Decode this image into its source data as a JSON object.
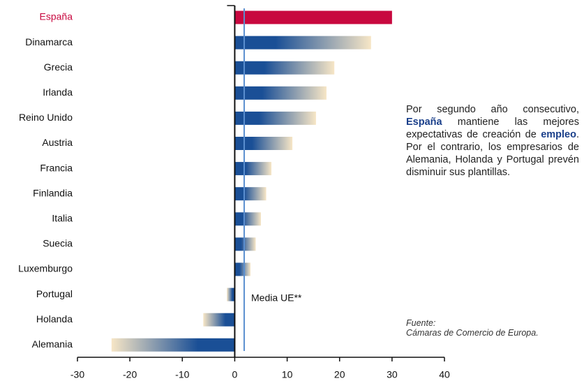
{
  "chart_data": {
    "type": "bar",
    "orientation": "horizontal",
    "categories": [
      "España",
      "Dinamarca",
      "Grecia",
      "Irlanda",
      "Reino Unido",
      "Austria",
      "Francia",
      "Finlandia",
      "Italia",
      "Suecia",
      "Luxemburgo",
      "Portugal",
      "Holanda",
      "Alemania"
    ],
    "values": [
      30,
      26,
      19,
      17.5,
      15.5,
      11,
      7,
      6,
      5,
      4,
      3,
      -1.5,
      -6,
      -23.5
    ],
    "colors": [
      "#c8083f",
      "#1a4f96",
      "#1a4f96",
      "#1a4f96",
      "#1a4f96",
      "#1a4f96",
      "#1a4f96",
      "#1a4f96",
      "#1a4f96",
      "#1a4f96",
      "#1a4f96",
      "#1a4f96",
      "#1a4f96",
      "#1a4f96"
    ],
    "gradient_end": "#f7e6c6",
    "label_colors": [
      "#c8083f",
      "#111111",
      "#111111",
      "#111111",
      "#111111",
      "#111111",
      "#111111",
      "#111111",
      "#111111",
      "#111111",
      "#111111",
      "#111111",
      "#111111",
      "#111111"
    ],
    "xlim": [
      -30,
      40
    ],
    "xticks": [
      -30,
      -20,
      -10,
      0,
      10,
      20,
      30,
      40
    ],
    "reference": {
      "value": 1.8,
      "label": "Media UE**",
      "color": "#5b8fd0"
    },
    "note": [
      {
        "text": "Por segundo año consecutivo, ",
        "bold": false
      },
      {
        "text": "España",
        "bold": true
      },
      {
        "text": " mantiene las mejores expectativas de creación de ",
        "bold": false
      },
      {
        "text": "empleo",
        "bold": true
      },
      {
        "text": ". Por el contrario, los empresarios de Alemania, Holanda y Portugal prevén dis­minuir sus plantillas.",
        "bold": false
      }
    ],
    "source": [
      "Fuente:",
      "Cámaras de Comercio de Europa."
    ]
  }
}
